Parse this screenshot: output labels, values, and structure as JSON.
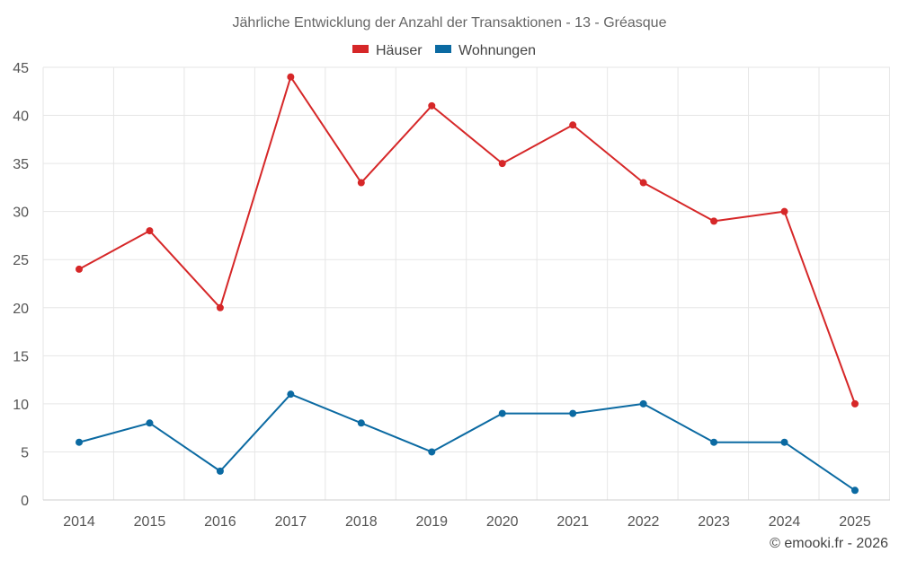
{
  "chart_data": {
    "type": "line",
    "title": "Jährliche Entwicklung der Anzahl der Transaktionen - 13 - Gréasque",
    "categories": [
      "2014",
      "2015",
      "2016",
      "2017",
      "2018",
      "2019",
      "2020",
      "2021",
      "2022",
      "2023",
      "2024",
      "2025"
    ],
    "series": [
      {
        "name": "Häuser",
        "color": "#d62728",
        "values": [
          24,
          28,
          20,
          44,
          33,
          41,
          35,
          39,
          33,
          29,
          30,
          10
        ]
      },
      {
        "name": "Wohnungen",
        "color": "#0b6aa2",
        "values": [
          6,
          8,
          3,
          11,
          8,
          5,
          9,
          9,
          10,
          6,
          6,
          1
        ]
      }
    ],
    "ylim": [
      0,
      45
    ],
    "yticks": [
      0,
      5,
      10,
      15,
      20,
      25,
      30,
      35,
      40,
      45
    ],
    "xlabel": "",
    "ylabel": "",
    "grid": true,
    "legend_position": "top-center"
  },
  "credit": "© emooki.fr - 2026"
}
